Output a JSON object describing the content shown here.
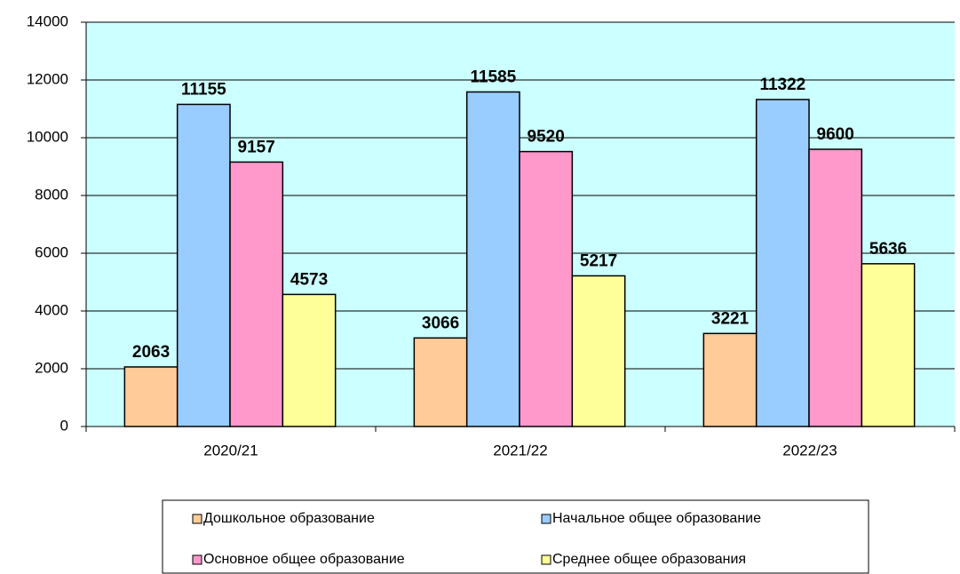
{
  "chart_data": {
    "type": "bar",
    "categories": [
      "2020/21",
      "2021/22",
      "2022/23"
    ],
    "series": [
      {
        "name": "Дошкольное образование",
        "color": "#ffcc99",
        "values": [
          2063,
          3066,
          3221
        ]
      },
      {
        "name": "Начальное общее образование",
        "color": "#99ccff",
        "values": [
          11155,
          11585,
          11322
        ]
      },
      {
        "name": "Основное общее образование",
        "color": "#ff99cc",
        "values": [
          9157,
          9520,
          9600
        ]
      },
      {
        "name": "Среднее общее образования",
        "color": "#ffff99",
        "values": [
          4573,
          5217,
          5636
        ]
      }
    ],
    "ylim": [
      0,
      14000
    ],
    "yticks": [
      0,
      2000,
      4000,
      6000,
      8000,
      10000,
      12000,
      14000
    ],
    "grid": true,
    "legend": "bottom",
    "plot_background": "#ccffff"
  }
}
